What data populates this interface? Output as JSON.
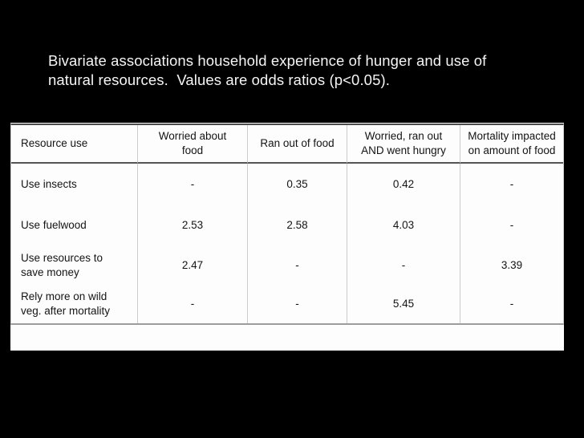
{
  "slide": {
    "title": "Bivariate associations household experience of hunger and use of\nnatural resources.  Values are odds ratios (p<0.05)."
  },
  "table": {
    "columns": [
      "Resource use",
      "Worried about\nfood",
      "Ran out of food",
      "Worried, ran out\nAND went hungry",
      "Mortality impacted\non amount of food"
    ],
    "rows": [
      {
        "label": "Use insects",
        "values": [
          "-",
          "0.35",
          "0.42",
          "-"
        ]
      },
      {
        "label": "Use fuelwood",
        "values": [
          "2.53",
          "2.58",
          "4.03",
          "-"
        ]
      },
      {
        "label": "Use resources to\nsave money",
        "values": [
          "2.47",
          "-",
          "-",
          "3.39"
        ]
      },
      {
        "label": "Rely more on wild\nveg. after mortality",
        "values": [
          "-",
          "-",
          "5.45",
          "-"
        ]
      }
    ]
  }
}
